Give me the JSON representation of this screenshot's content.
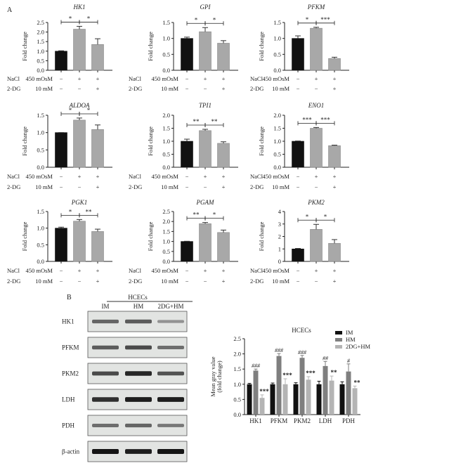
{
  "panel_a": {
    "label": "A",
    "y_label": "Fold change",
    "row_labels": [
      {
        "name": "NaCl",
        "dose": "450 mOsM",
        "signs": [
          "−",
          "+",
          "+"
        ]
      },
      {
        "name": "2-DG",
        "dose": "10 mM",
        "signs": [
          "−",
          "−",
          "+"
        ]
      }
    ]
  },
  "chart_data": [
    {
      "type": "bar",
      "title": "HK1",
      "ylabel": "Fold change",
      "ylim": [
        0,
        2.5
      ],
      "yticks": [
        "0.0",
        "0.5",
        "1.0",
        "1.5",
        "2.0",
        "2.5"
      ],
      "values": [
        1.0,
        2.15,
        1.35
      ],
      "errors": [
        0.02,
        0.15,
        0.3
      ],
      "significance": [
        "*",
        "*"
      ]
    },
    {
      "type": "bar",
      "title": "GPI",
      "ylabel": "Fold change",
      "ylim": [
        0,
        1.5
      ],
      "yticks": [
        "0.0",
        "0.5",
        "1.0",
        "1.5"
      ],
      "values": [
        1.0,
        1.21,
        0.85
      ],
      "errors": [
        0.04,
        0.13,
        0.08
      ],
      "significance": [
        "*",
        "*"
      ]
    },
    {
      "type": "bar",
      "title": "PFKM",
      "ylabel": "Fold change",
      "ylim": [
        0,
        1.5
      ],
      "yticks": [
        "0.0",
        "0.5",
        "1.0",
        "1.5"
      ],
      "values": [
        1.0,
        1.32,
        0.37
      ],
      "errors": [
        0.08,
        0.03,
        0.04
      ],
      "significance": [
        "*",
        "***"
      ]
    },
    {
      "type": "bar",
      "title": "ALDOA",
      "ylabel": "Fold change",
      "ylim": [
        0,
        1.5
      ],
      "yticks": [
        "0.0",
        "0.5",
        "1.0",
        "1.5"
      ],
      "values": [
        1.0,
        1.36,
        1.09
      ],
      "errors": [
        0.0,
        0.06,
        0.13
      ],
      "significance": [
        "*",
        "*"
      ]
    },
    {
      "type": "bar",
      "title": "TPI1",
      "ylabel": "Fold change",
      "ylim": [
        0,
        2.0
      ],
      "yticks": [
        "0.0",
        "0.5",
        "1.0",
        "1.5",
        "2.0"
      ],
      "values": [
        1.0,
        1.41,
        0.92
      ],
      "errors": [
        0.08,
        0.05,
        0.06
      ],
      "significance": [
        "**",
        "**"
      ]
    },
    {
      "type": "bar",
      "title": "ENO1",
      "ylabel": "Fold change",
      "ylim": [
        0,
        2.0
      ],
      "yticks": [
        "0.0",
        "0.5",
        "1.0",
        "1.5",
        "2.0"
      ],
      "values": [
        1.0,
        1.5,
        0.83
      ],
      "errors": [
        0.01,
        0.03,
        0.02
      ],
      "significance": [
        "***",
        "***"
      ]
    },
    {
      "type": "bar",
      "title": "PGK1",
      "ylabel": "Fold change",
      "ylim": [
        0,
        1.5
      ],
      "yticks": [
        "0.0",
        "0.5",
        "1.0",
        "1.5"
      ],
      "values": [
        1.0,
        1.21,
        0.9
      ],
      "errors": [
        0.03,
        0.05,
        0.07
      ],
      "significance": [
        "*",
        "**"
      ]
    },
    {
      "type": "bar",
      "title": "PGAM",
      "ylabel": "Fold change",
      "ylim": [
        0,
        2.5
      ],
      "yticks": [
        "0.0",
        "0.5",
        "1.0",
        "1.5",
        "2.0",
        "2.5"
      ],
      "values": [
        1.0,
        1.89,
        1.45
      ],
      "errors": [
        0.01,
        0.06,
        0.12
      ],
      "significance": [
        "**",
        "*"
      ]
    },
    {
      "type": "bar",
      "title": "PKM2",
      "ylabel": "Fold change",
      "ylim": [
        0,
        4
      ],
      "yticks": [
        "0",
        "1",
        "2",
        "3",
        "4"
      ],
      "values": [
        1.0,
        2.57,
        1.45
      ],
      "errors": [
        0.04,
        0.4,
        0.3
      ],
      "significance": [
        "*",
        "*"
      ]
    },
    {
      "type": "bar",
      "title": "HCECs",
      "ylabel": "Mean gray value (fold change)",
      "ylabel_lines": [
        "Mean gray value",
        "(fold change)"
      ],
      "ylim": [
        0,
        2.5
      ],
      "yticks": [
        "0.0",
        "0.5",
        "1.0",
        "1.5",
        "2.0",
        "2.5"
      ],
      "categories": [
        "HK1",
        "PFKM",
        "PKM2",
        "LDH",
        "PDH"
      ],
      "legend_position": "top-right",
      "series": [
        {
          "name": "IM",
          "color": "#111111",
          "values": [
            1.0,
            1.0,
            1.0,
            1.0,
            1.0
          ],
          "errors": [
            0.03,
            0.04,
            0.05,
            0.1,
            0.08
          ],
          "annotations": [
            "",
            "",
            "",
            "",
            ""
          ]
        },
        {
          "name": "HM",
          "color": "#7f7f7f",
          "values": [
            1.45,
            1.93,
            1.87,
            1.6,
            1.42
          ],
          "errors": [
            0.05,
            0.08,
            0.08,
            0.15,
            0.25
          ],
          "annotations": [
            "###",
            "###",
            "###",
            "##",
            "#"
          ]
        },
        {
          "name": "2DG+HM",
          "color": "#b4b4b4",
          "values": [
            0.55,
            1.0,
            1.15,
            1.12,
            0.87
          ],
          "errors": [
            0.1,
            0.18,
            0.1,
            0.15,
            0.07
          ],
          "annotations": [
            "***",
            "***",
            "***",
            "**",
            "**"
          ]
        }
      ]
    }
  ],
  "panel_b": {
    "label": "B",
    "blot": {
      "group": "HCECs",
      "lanes": [
        "IM",
        "HM",
        "2DG+HM"
      ],
      "rows": [
        {
          "label": "HK1",
          "band_intensity": [
            0.55,
            0.6,
            0.3
          ]
        },
        {
          "label": "PFKM",
          "band_intensity": [
            0.6,
            0.7,
            0.5
          ]
        },
        {
          "label": "PKM2",
          "band_intensity": [
            0.7,
            0.9,
            0.65
          ]
        },
        {
          "label": "LDH",
          "band_intensity": [
            0.85,
            0.95,
            0.95
          ]
        },
        {
          "label": "PDH",
          "band_intensity": [
            0.5,
            0.55,
            0.45
          ]
        },
        {
          "label": "β-actin",
          "band_intensity": [
            1.0,
            0.95,
            1.0
          ]
        }
      ]
    }
  }
}
